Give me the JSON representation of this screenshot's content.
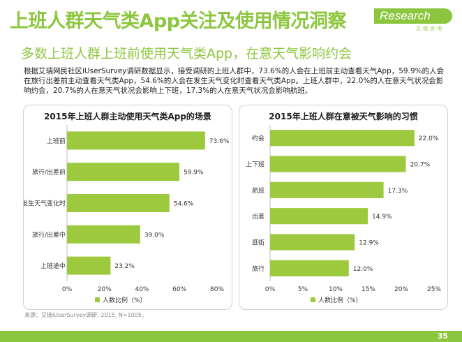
{
  "header": {
    "title": "上班人群天气类App关注及使用情况洞察",
    "subtitle": "多数上班人群上班前使用天气类App，在意天气影响约会",
    "logo_text": "Research",
    "logo_sub": "艾瑞咨询"
  },
  "description": "根据艾瑞网民社区iUserSurvey调研数据显示，接受调研的上班人群中，73.6%的人会在上班前主动查看天气App，59.9%的人会在旅行出差前主动查看天气类App，54.6%的人会在发生天气变化时查看天气类App。上班人群中，22.0%的人在意天气状况会影响约会，20.7%的人在意天气状况会影响上下班，17.3%的人在意天气状况会影响航班。",
  "source": "来源：艾瑞iUserSurvey调研, 2015, N=1005。",
  "page_number": "35",
  "colors": {
    "accent": "#8cc63e",
    "bar": "#9dc93f"
  },
  "chart_data": [
    {
      "type": "bar",
      "orientation": "horizontal",
      "title": "2015年上班人群主动使用天气类App的场景",
      "categories": [
        "上班前",
        "旅行/出差前",
        "发生天气变化时",
        "旅行/出差中",
        "上班途中"
      ],
      "series": [
        {
          "name": "人数比例（%）",
          "values": [
            73.6,
            59.9,
            54.6,
            39.0,
            23.2
          ]
        }
      ],
      "data_labels": [
        "73.6%",
        "59.9%",
        "54.6%",
        "39.0%",
        "23.2%"
      ],
      "xlim": [
        0,
        80
      ],
      "xticks": [
        "0%",
        "20%",
        "40%",
        "60%",
        "80%"
      ],
      "grid": false,
      "legend": "bottom"
    },
    {
      "type": "bar",
      "orientation": "horizontal",
      "title": "2015年上班人群在意被天气影响的习惯",
      "categories": [
        "约会",
        "上下班",
        "航班",
        "出差",
        "逛街",
        "旅行"
      ],
      "series": [
        {
          "name": "人数比例（%）",
          "values": [
            22.0,
            20.7,
            17.3,
            14.9,
            12.9,
            12.0
          ]
        }
      ],
      "data_labels": [
        "22.0%",
        "20.7%",
        "17.3%",
        "14.9%",
        "12.9%",
        "12.0%"
      ],
      "xlim": [
        0,
        25
      ],
      "xticks": [
        "0%",
        "5%",
        "10%",
        "15%",
        "20%",
        "25%"
      ],
      "grid": false,
      "legend": "bottom"
    }
  ]
}
